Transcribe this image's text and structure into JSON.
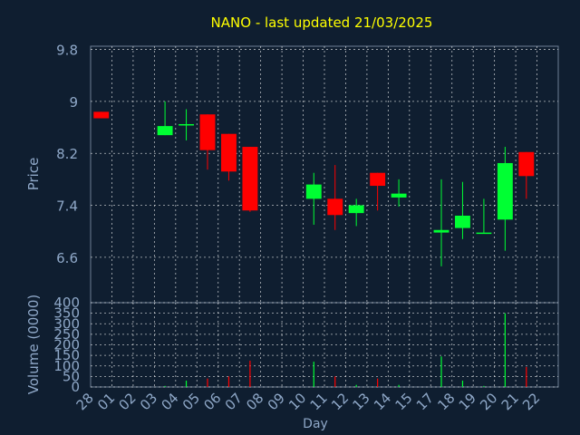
{
  "chart_data": {
    "type": "candlestick",
    "title": "NANO - last updated 21/03/2025",
    "xlabel": "Day",
    "ylabel": "Price",
    "volume_label": "Volume (0000)",
    "x_ticks": [
      "28",
      "01",
      "02",
      "03",
      "04",
      "05",
      "06",
      "07",
      "08",
      "09",
      "10",
      "11",
      "12",
      "13",
      "14",
      "15",
      "17",
      "18",
      "19",
      "20",
      "21",
      "22"
    ],
    "price_ticks": [
      6.6,
      7.4,
      8.2,
      9,
      9.8
    ],
    "price_tick_labels": [
      "6.6",
      "7.4",
      "8.2",
      "9",
      "9.8"
    ],
    "price_range": [
      5.9,
      9.85
    ],
    "volume_ticks": [
      0,
      50,
      100,
      150,
      200,
      250,
      300,
      350,
      400
    ],
    "volume_range": [
      0,
      400
    ],
    "grid": true,
    "candles": [
      {
        "x": "28",
        "open": 8.84,
        "high": 8.84,
        "low": 8.74,
        "close": 8.74,
        "volume": 0
      },
      {
        "x": "03",
        "open": 8.48,
        "high": 9.0,
        "low": 8.48,
        "close": 8.62,
        "volume": 5
      },
      {
        "x": "04",
        "open": 8.65,
        "high": 8.88,
        "low": 8.4,
        "close": 8.65,
        "volume": 30
      },
      {
        "x": "05",
        "open": 8.8,
        "high": 8.8,
        "low": 7.95,
        "close": 8.25,
        "volume": 40
      },
      {
        "x": "06",
        "open": 8.5,
        "high": 8.5,
        "low": 7.78,
        "close": 7.92,
        "volume": 50
      },
      {
        "x": "07",
        "open": 8.3,
        "high": 8.3,
        "low": 7.3,
        "close": 7.32,
        "volume": 125
      },
      {
        "x": "10",
        "open": 7.5,
        "high": 7.9,
        "low": 7.1,
        "close": 7.72,
        "volume": 120
      },
      {
        "x": "11",
        "open": 7.5,
        "high": 8.02,
        "low": 7.02,
        "close": 7.25,
        "volume": 50
      },
      {
        "x": "12",
        "open": 7.28,
        "high": 7.5,
        "low": 7.08,
        "close": 7.4,
        "volume": 10
      },
      {
        "x": "13",
        "open": 7.9,
        "high": 7.9,
        "low": 7.32,
        "close": 7.7,
        "volume": 40
      },
      {
        "x": "14",
        "open": 7.52,
        "high": 7.8,
        "low": 7.38,
        "close": 7.58,
        "volume": 10
      },
      {
        "x": "17",
        "open": 6.98,
        "high": 7.8,
        "low": 6.46,
        "close": 7.02,
        "volume": 145
      },
      {
        "x": "18",
        "open": 7.05,
        "high": 7.76,
        "low": 6.88,
        "close": 7.24,
        "volume": 30
      },
      {
        "x": "19",
        "open": 6.98,
        "high": 7.5,
        "low": 6.98,
        "close": 6.98,
        "volume": 5
      },
      {
        "x": "20",
        "open": 7.18,
        "high": 8.3,
        "low": 6.7,
        "close": 8.05,
        "volume": 350
      },
      {
        "x": "21",
        "open": 8.22,
        "high": 8.22,
        "low": 7.5,
        "close": 7.85,
        "volume": 95
      }
    ],
    "colors": {
      "background": "#0f1e30",
      "up": "#00ff33",
      "down": "#ff0000",
      "title": "#ffff00",
      "axis_text": "#8fa8c8",
      "grid": "#ffffff"
    }
  }
}
